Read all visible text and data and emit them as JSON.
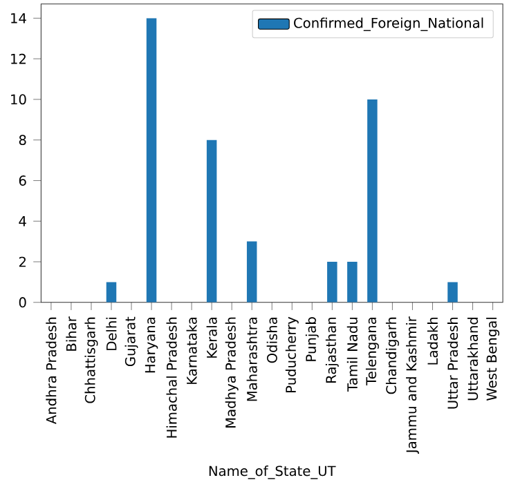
{
  "chart_data": {
    "type": "bar",
    "xlabel": "Name_of_State_UT",
    "categories": [
      "Andhra Pradesh",
      "Bihar",
      "Chhattisgarh",
      "Delhi",
      "Gujarat",
      "Haryana",
      "Himachal Pradesh",
      "Karnataka",
      "Kerala",
      "Madhya Pradesh",
      "Maharashtra",
      "Odisha",
      "Puducherry",
      "Punjab",
      "Rajasthan",
      "Tamil Nadu",
      "Telengana",
      "Chandigarh",
      "Jammu and Kashmir",
      "Ladakh",
      "Uttar Pradesh",
      "Uttarakhand",
      "West Bengal"
    ],
    "series": [
      {
        "name": "Confirmed_Foreign_National",
        "color": "#1f77b4",
        "values": [
          0,
          0,
          0,
          1,
          0,
          14,
          0,
          0,
          8,
          0,
          3,
          0,
          0,
          0,
          2,
          2,
          10,
          0,
          0,
          0,
          1,
          0,
          0
        ]
      }
    ],
    "ylim": [
      0,
      14.7
    ],
    "yticks": [
      0,
      2,
      4,
      6,
      8,
      10,
      12,
      14
    ],
    "legend": "top right",
    "grid": false
  }
}
